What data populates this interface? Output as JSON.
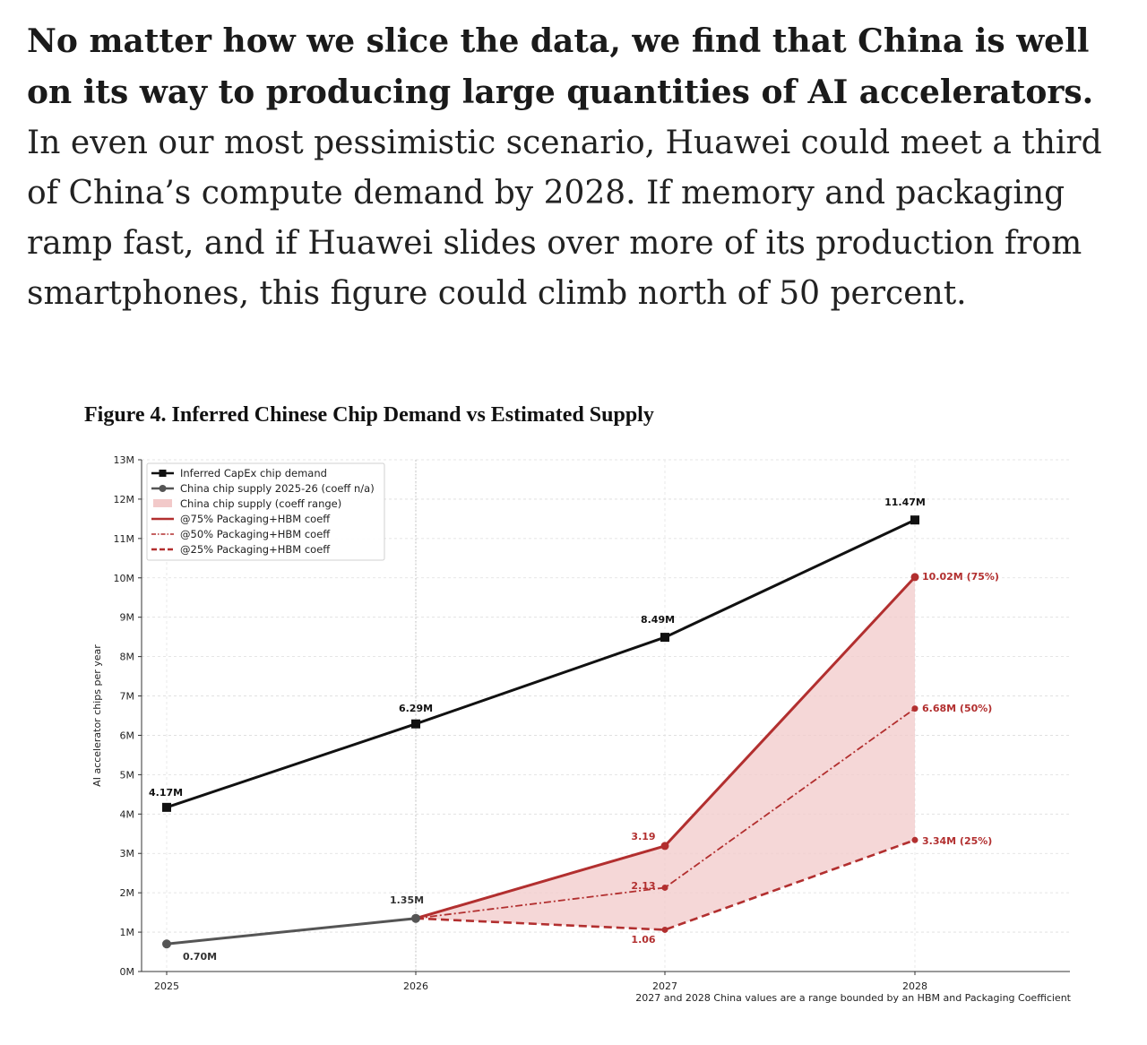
{
  "article": {
    "lead": "No matter how we slice the data, we find that China is well on its way to producing large quantities of AI accelerators.",
    "body": "In even our most pessimistic scenario, Huawei could meet a third of China’s compute demand by 2028. If memory and packaging ramp fast, and if Huawei slides over more of its production from smartphones, this figure could climb north of 50 percent."
  },
  "colors": {
    "demand": "#111111",
    "supply_early": "#555555",
    "supply_range": "#b22f2f",
    "range_fill": "#f2c9c9"
  },
  "chart_data": {
    "type": "line",
    "title": "Figure 4. Inferred Chinese Chip Demand vs Estimated Supply",
    "xlabel": "",
    "ylabel": "AI accelerator chips per year",
    "x": [
      2025,
      2026,
      2027,
      2028
    ],
    "x_tick_labels": [
      "2025",
      "2026",
      "2027",
      "2028"
    ],
    "ylim": [
      0,
      13
    ],
    "y_ticks": [
      0,
      1,
      2,
      3,
      4,
      5,
      6,
      7,
      8,
      9,
      10,
      11,
      12,
      13
    ],
    "y_tick_labels": [
      "0M",
      "1M",
      "2M",
      "3M",
      "4M",
      "5M",
      "6M",
      "7M",
      "8M",
      "9M",
      "10M",
      "11M",
      "12M",
      "13M"
    ],
    "grid": true,
    "legend_position": "top-left",
    "note": "2027 and 2028 China values are a range bounded by an HBM and Packaging Coefficient",
    "series": [
      {
        "name": "Inferred CapEx chip demand",
        "key": "demand",
        "x": [
          2025,
          2026,
          2027,
          2028
        ],
        "values": [
          4.17,
          6.29,
          8.49,
          11.47
        ],
        "labels": [
          "4.17M",
          "6.29M",
          "8.49M",
          "11.47M"
        ]
      },
      {
        "name": "China chip supply 2025-26 (coeff n/a)",
        "key": "supply_early",
        "x": [
          2025,
          2026
        ],
        "values": [
          0.7,
          1.35
        ],
        "labels": [
          "0.70M",
          "1.35M"
        ]
      },
      {
        "name": "@75% Packaging+HBM coeff",
        "key": "c75",
        "x": [
          2026,
          2027,
          2028
        ],
        "values": [
          1.35,
          3.19,
          10.02
        ],
        "labels": [
          "",
          "3.19",
          "10.02M (75%)"
        ]
      },
      {
        "name": "@50% Packaging+HBM coeff",
        "key": "c50",
        "x": [
          2026,
          2027,
          2028
        ],
        "values": [
          1.35,
          2.13,
          6.68
        ],
        "labels": [
          "",
          "2.13",
          "6.68M (50%)"
        ]
      },
      {
        "name": "@25% Packaging+HBM coeff",
        "key": "c25",
        "x": [
          2026,
          2027,
          2028
        ],
        "values": [
          1.35,
          1.06,
          3.34
        ],
        "labels": [
          "",
          "1.06",
          "3.34M (25%)"
        ]
      }
    ],
    "range_band": {
      "name": "China chip supply (coeff range)",
      "x": [
        2026,
        2027,
        2028
      ],
      "lower": [
        1.35,
        1.06,
        3.34
      ],
      "upper": [
        1.35,
        3.19,
        10.02
      ]
    }
  }
}
